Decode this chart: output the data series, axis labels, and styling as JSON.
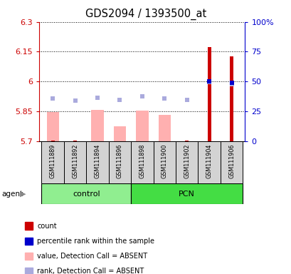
{
  "title": "GDS2094 / 1393500_at",
  "samples": [
    "GSM111889",
    "GSM111892",
    "GSM111894",
    "GSM111896",
    "GSM111898",
    "GSM111900",
    "GSM111902",
    "GSM111904",
    "GSM111906"
  ],
  "groups": {
    "control": [
      0,
      1,
      2,
      3
    ],
    "PCN": [
      4,
      5,
      6,
      7,
      8
    ]
  },
  "ylim_left": [
    5.7,
    6.3
  ],
  "ylim_right": [
    0,
    100
  ],
  "yticks_left": [
    5.7,
    5.85,
    6.0,
    6.15,
    6.3
  ],
  "ytick_labels_left": [
    "5.7",
    "5.85",
    "6",
    "6.15",
    "6.3"
  ],
  "yticks_right": [
    0,
    25,
    50,
    75,
    100
  ],
  "ytick_labels_right": [
    "0",
    "25",
    "50",
    "75",
    "100%"
  ],
  "pink_bar_heights": [
    5.845,
    5.7,
    5.858,
    5.775,
    5.853,
    5.832,
    5.7,
    5.7,
    5.7
  ],
  "red_bar_heights": [
    5.701,
    5.702,
    5.7,
    5.7,
    5.7,
    5.7,
    5.702,
    6.175,
    6.127
  ],
  "blue_rank_y": [
    5.915,
    5.905,
    5.92,
    5.907,
    5.925,
    5.915,
    5.908,
    5.998,
    5.988
  ],
  "blue_pct_y": [
    null,
    null,
    null,
    null,
    null,
    null,
    null,
    50.0,
    49.0
  ],
  "base": 5.7,
  "pink_bar_color": "#FFB0B0",
  "red_bar_color": "#CC0000",
  "blue_rank_color": "#AAAADD",
  "blue_pct_color": "#0000CC",
  "left_axis_color": "#CC0000",
  "right_axis_color": "#0000CC",
  "control_bg": "#90EE90",
  "pcn_bg": "#44DD44",
  "sample_box_bg": "#D3D3D3",
  "legend": [
    {
      "label": "count",
      "color": "#CC0000"
    },
    {
      "label": "percentile rank within the sample",
      "color": "#0000CC"
    },
    {
      "label": "value, Detection Call = ABSENT",
      "color": "#FFB0B0"
    },
    {
      "label": "rank, Detection Call = ABSENT",
      "color": "#AAAADD"
    }
  ]
}
